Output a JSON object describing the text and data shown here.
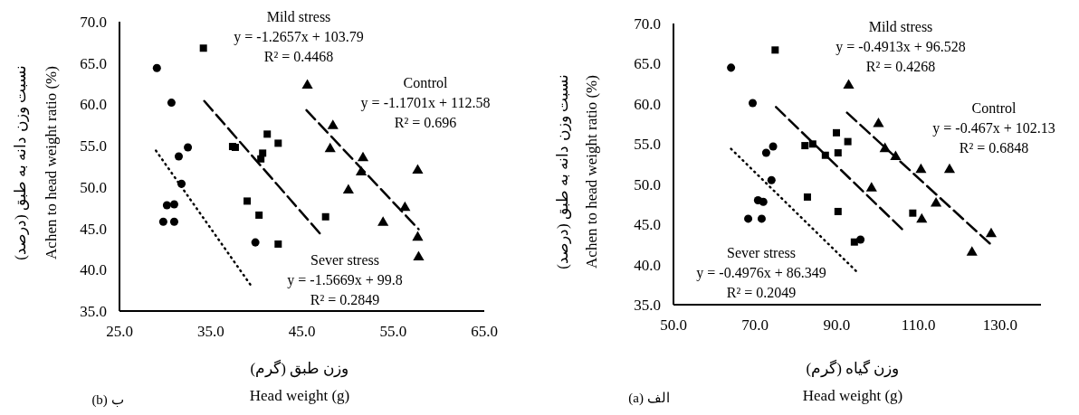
{
  "chart_data": [
    {
      "type": "scatter",
      "xlabel": "وزن طبق (گرم)\nHead weight (g)",
      "ylabel": "نسبت وزن دانه به طبق (درصد)\nAchen to head weight ratio (%)",
      "xlim": [
        25,
        65
      ],
      "xticks": [
        {
          "value": 25,
          "label": "25.0"
        },
        {
          "value": 35,
          "label": "35.0"
        },
        {
          "value": 45,
          "label": "45.0"
        },
        {
          "value": 55,
          "label": "55.0"
        },
        {
          "value": 65,
          "label": "65.0"
        }
      ],
      "ylim": [
        35,
        70
      ],
      "yticks": [
        {
          "value": 35,
          "label": "35.0"
        },
        {
          "value": 40,
          "label": "40.0"
        },
        {
          "value": 45,
          "label": "45.0"
        },
        {
          "value": 50,
          "label": "50.0"
        },
        {
          "value": 55,
          "label": "55.0"
        },
        {
          "value": 60,
          "label": "60.0"
        },
        {
          "value": 65,
          "label": "65.0"
        },
        {
          "value": 70,
          "label": "70.0"
        }
      ],
      "series": [
        {
          "marker": "circle",
          "color": "#000000",
          "x": [
            29.1,
            30.7,
            32.5,
            31.5,
            31.8,
            30.2,
            31.0,
            29.8,
            31.0,
            39.9
          ],
          "values": [
            64.4,
            60.2,
            54.8,
            53.7,
            50.4,
            47.8,
            47.9,
            45.8,
            45.8,
            43.3
          ]
        },
        {
          "marker": "square",
          "color": "#000000",
          "x": [
            34.2,
            37.4,
            37.7,
            41.2,
            42.4,
            40.7,
            40.5,
            39.0,
            40.3,
            47.6,
            42.4
          ],
          "values": [
            66.8,
            54.9,
            54.8,
            56.4,
            55.3,
            54.1,
            53.4,
            48.3,
            46.6,
            46.4,
            43.1
          ]
        },
        {
          "marker": "triangle",
          "color": "#000000",
          "x": [
            45.6,
            48.4,
            48.1,
            51.7,
            51.5,
            57.7,
            50.1,
            56.3,
            53.9,
            57.7,
            57.8
          ],
          "values": [
            62.3,
            57.4,
            54.6,
            53.5,
            51.8,
            52.0,
            49.6,
            47.5,
            45.7,
            43.9,
            41.5
          ]
        },
        {
          "type": "line",
          "line_style": "dotted",
          "color": "#000000",
          "x": [
            29.0,
            39.6
          ],
          "values": [
            54.4,
            37.8
          ]
        },
        {
          "type": "line",
          "line_style": "dashed",
          "color": "#000000",
          "x": [
            34.3,
            47.2
          ],
          "values": [
            60.4,
            44.1
          ]
        },
        {
          "type": "line",
          "line_style": "dashed",
          "color": "#000000",
          "x": [
            45.5,
            57.8
          ],
          "values": [
            59.3,
            44.9
          ]
        }
      ],
      "annotations": [
        "Mild stress\ny = -1.2657x + 103.79\nR² = 0.4468",
        "Control\ny = -1.1701x + 112.58\nR² = 0.696",
        "Sever stress\ny = -1.5669x + 99.8\nR² = 0.2849",
        "(b) ب"
      ]
    },
    {
      "type": "scatter",
      "xlabel": "وزن گیاه (گرم)\nHead weight (g)",
      "ylabel": "نسبت وزن دانه به طبق (درصد)\nAchen to head weight ratio (%)",
      "xlim": [
        50,
        140
      ],
      "xticks": [
        {
          "value": 50,
          "label": "50.0"
        },
        {
          "value": 70,
          "label": "70.0"
        },
        {
          "value": 90,
          "label": "90.0"
        },
        {
          "value": 110,
          "label": "110.0"
        },
        {
          "value": 130,
          "label": "130.0"
        }
      ],
      "ylim": [
        35,
        70
      ],
      "yticks": [
        {
          "value": 35,
          "label": "35.0"
        },
        {
          "value": 40,
          "label": "40.0"
        },
        {
          "value": 45,
          "label": "45.0"
        },
        {
          "value": 50,
          "label": "50.0"
        },
        {
          "value": 55,
          "label": "55.0"
        },
        {
          "value": 60,
          "label": "60.0"
        },
        {
          "value": 65,
          "label": "65.0"
        },
        {
          "value": 70,
          "label": "70.0"
        }
      ],
      "series": [
        {
          "marker": "circle",
          "color": "#000000",
          "x": [
            64.1,
            69.4,
            74.4,
            72.7,
            74.0,
            70.7,
            72.0,
            68.3,
            71.6,
            95.8
          ],
          "values": [
            64.5,
            60.1,
            54.7,
            53.9,
            50.5,
            48.0,
            47.8,
            45.7,
            45.7,
            43.1
          ]
        },
        {
          "marker": "square",
          "color": "#000000",
          "x": [
            74.9,
            82.2,
            84.1,
            87.2,
            89.9,
            90.3,
            92.7,
            82.8,
            90.3,
            108.6,
            94.3
          ],
          "values": [
            66.7,
            54.8,
            55.0,
            53.6,
            56.4,
            53.9,
            55.3,
            48.4,
            46.6,
            46.4,
            42.8
          ]
        },
        {
          "marker": "triangle",
          "color": "#000000",
          "x": [
            92.9,
            100.2,
            101.8,
            104.4,
            110.6,
            117.6,
            98.5,
            114.3,
            110.8,
            127.8,
            123.1
          ],
          "values": [
            62.3,
            57.5,
            54.4,
            53.4,
            51.8,
            51.8,
            49.5,
            47.6,
            45.6,
            43.8,
            41.5
          ]
        },
        {
          "type": "line",
          "line_style": "dotted",
          "color": "#000000",
          "x": [
            64.1,
            94.9
          ],
          "values": [
            54.4,
            39.1
          ]
        },
        {
          "type": "line",
          "line_style": "dashed",
          "color": "#000000",
          "x": [
            75.1,
            106.4
          ],
          "values": [
            59.6,
            44.2
          ]
        },
        {
          "type": "line",
          "line_style": "dashed",
          "color": "#000000",
          "x": [
            92.5,
            127.5
          ],
          "values": [
            58.9,
            42.6
          ]
        }
      ],
      "annotations": [
        "Mild stress\ny = -0.4913x + 96.528\nR² = 0.4268",
        "Control\ny = -0.467x + 102.13\nR² = 0.6848",
        "Sever stress\ny = -0.4976x + 86.349\nR² = 0.2049",
        "(a) الف"
      ]
    }
  ]
}
